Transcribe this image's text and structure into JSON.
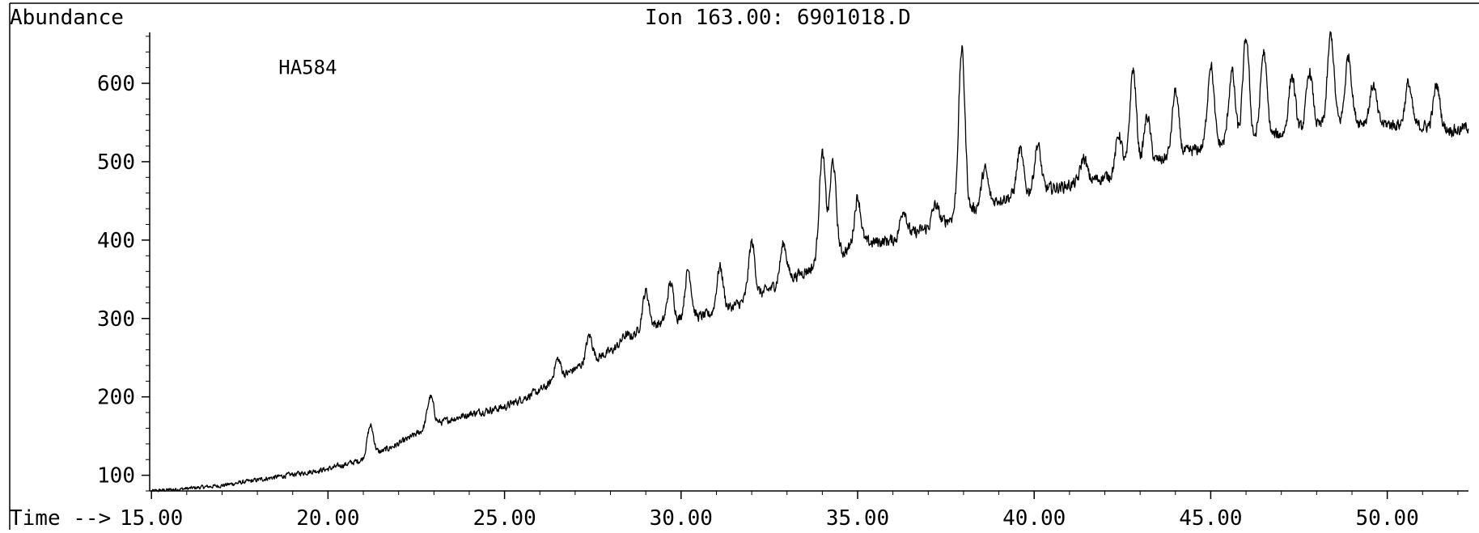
{
  "header": {
    "ylabel": "Abundance",
    "title": "Ion 163.00: 6901018.D",
    "xlabel": "Time -->"
  },
  "annotations": [
    {
      "text": "HA584",
      "x": 18.6,
      "y": 612
    }
  ],
  "chart_data": {
    "type": "line",
    "title": "Ion 163.00: 6901018.D",
    "xlabel": "Time -->",
    "ylabel": "Abundance",
    "xlim": [
      14.95,
      52.3
    ],
    "ylim": [
      80,
      665
    ],
    "x_ticks": [
      15,
      20,
      25,
      30,
      35,
      40,
      45,
      50
    ],
    "x_tick_labels": [
      "15.00",
      "20.00",
      "25.00",
      "30.00",
      "35.00",
      "40.00",
      "45.00",
      "50.00"
    ],
    "y_ticks": [
      100,
      200,
      300,
      400,
      500,
      600
    ],
    "y_tick_labels": [
      "100",
      "200",
      "300",
      "400",
      "500",
      "600"
    ],
    "grid": false,
    "legend": "none",
    "series": [
      {
        "line_color": "#000000",
        "baseline": [
          [
            15.0,
            80
          ],
          [
            16.0,
            83
          ],
          [
            17.0,
            87
          ],
          [
            18.0,
            94
          ],
          [
            19.0,
            101
          ],
          [
            20.0,
            108
          ],
          [
            21.0,
            120
          ],
          [
            22.0,
            140
          ],
          [
            23.0,
            165
          ],
          [
            24.0,
            178
          ],
          [
            25.0,
            187
          ],
          [
            26.0,
            208
          ],
          [
            27.0,
            236
          ],
          [
            28.0,
            258
          ],
          [
            29.0,
            290
          ],
          [
            30.0,
            298
          ],
          [
            31.0,
            307
          ],
          [
            32.0,
            325
          ],
          [
            33.0,
            350
          ],
          [
            34.0,
            370
          ],
          [
            35.0,
            395
          ],
          [
            36.0,
            400
          ],
          [
            37.0,
            415
          ],
          [
            38.0,
            435
          ],
          [
            39.0,
            452
          ],
          [
            40.0,
            462
          ],
          [
            41.0,
            470
          ],
          [
            42.0,
            480
          ],
          [
            43.0,
            495
          ],
          [
            44.0,
            508
          ],
          [
            45.0,
            520
          ],
          [
            46.0,
            527
          ],
          [
            47.0,
            535
          ],
          [
            48.0,
            545
          ],
          [
            49.0,
            552
          ],
          [
            50.0,
            548
          ],
          [
            51.0,
            545
          ],
          [
            52.0,
            540
          ],
          [
            52.3,
            545
          ]
        ],
        "peaks": [
          [
            21.2,
            163
          ],
          [
            22.9,
            200
          ],
          [
            26.5,
            248
          ],
          [
            27.4,
            278
          ],
          [
            28.4,
            278
          ],
          [
            29.0,
            335
          ],
          [
            29.7,
            345
          ],
          [
            30.2,
            362
          ],
          [
            31.1,
            366
          ],
          [
            32.0,
            397
          ],
          [
            32.9,
            395
          ],
          [
            34.0,
            510
          ],
          [
            34.3,
            500
          ],
          [
            35.0,
            455
          ],
          [
            36.3,
            440
          ],
          [
            37.2,
            445
          ],
          [
            37.95,
            643
          ],
          [
            38.6,
            490
          ],
          [
            39.6,
            515
          ],
          [
            40.1,
            522
          ],
          [
            41.4,
            505
          ],
          [
            42.4,
            535
          ],
          [
            42.8,
            618
          ],
          [
            43.2,
            558
          ],
          [
            44.0,
            590
          ],
          [
            45.0,
            625
          ],
          [
            45.6,
            615
          ],
          [
            46.0,
            658
          ],
          [
            46.5,
            640
          ],
          [
            47.3,
            610
          ],
          [
            47.8,
            615
          ],
          [
            48.4,
            662
          ],
          [
            48.9,
            635
          ],
          [
            49.6,
            598
          ],
          [
            50.6,
            600
          ],
          [
            51.4,
            598
          ]
        ],
        "noise_amplitude": 12
      }
    ]
  }
}
